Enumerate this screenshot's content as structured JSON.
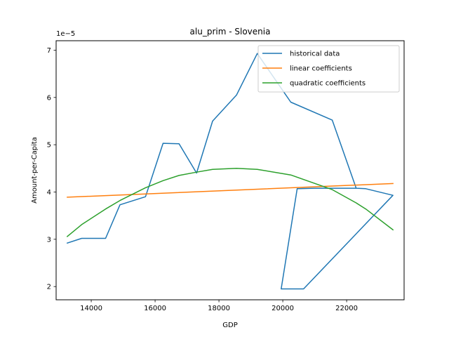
{
  "chart_data": {
    "type": "line",
    "title": "alu_prim - Slovenia",
    "xlabel": "GDP",
    "ylabel": "Amount-per-Capita",
    "y_offset_label": "1e−5",
    "xlim": [
      12900,
      23800
    ],
    "ylim": [
      1.72,
      7.2
    ],
    "x_ticks": [
      14000,
      16000,
      18000,
      20000,
      22000
    ],
    "x_tick_labels": [
      "14000",
      "16000",
      "18000",
      "20000",
      "22000"
    ],
    "y_ticks": [
      2,
      3,
      4,
      5,
      6,
      7
    ],
    "y_tick_labels": [
      "2",
      "3",
      "4",
      "5",
      "6",
      "7"
    ],
    "grid": false,
    "legend_position": "top-right",
    "series": [
      {
        "name": "historical data",
        "color": "#1f77b4",
        "points": [
          [
            13250,
            2.92
          ],
          [
            13700,
            3.02
          ],
          [
            14450,
            3.02
          ],
          [
            14900,
            3.73
          ],
          [
            15700,
            3.9
          ],
          [
            16250,
            5.03
          ],
          [
            16750,
            5.02
          ],
          [
            17300,
            4.4
          ],
          [
            17800,
            5.5
          ],
          [
            18550,
            6.05
          ],
          [
            19200,
            6.93
          ],
          [
            20250,
            5.9
          ],
          [
            21550,
            5.52
          ],
          [
            22300,
            4.08
          ],
          [
            22600,
            4.07
          ],
          [
            23450,
            3.93
          ],
          [
            20650,
            1.95
          ],
          [
            19950,
            1.95
          ],
          [
            20450,
            4.07
          ],
          [
            21000,
            4.08
          ],
          [
            22300,
            4.08
          ]
        ]
      },
      {
        "name": "linear coefficients",
        "color": "#ff7f0e",
        "points": [
          [
            13250,
            3.89
          ],
          [
            23450,
            4.18
          ]
        ]
      },
      {
        "name": "quadratic coefficients",
        "color": "#2ca02c",
        "points": [
          [
            13250,
            3.06
          ],
          [
            13700,
            3.31
          ],
          [
            14450,
            3.64
          ],
          [
            14900,
            3.82
          ],
          [
            15700,
            4.09
          ],
          [
            16250,
            4.24
          ],
          [
            16750,
            4.35
          ],
          [
            17300,
            4.42
          ],
          [
            17800,
            4.48
          ],
          [
            18550,
            4.5
          ],
          [
            19200,
            4.48
          ],
          [
            20250,
            4.36
          ],
          [
            21550,
            4.05
          ],
          [
            22300,
            3.77
          ],
          [
            22600,
            3.64
          ],
          [
            23450,
            3.2
          ]
        ]
      }
    ]
  }
}
